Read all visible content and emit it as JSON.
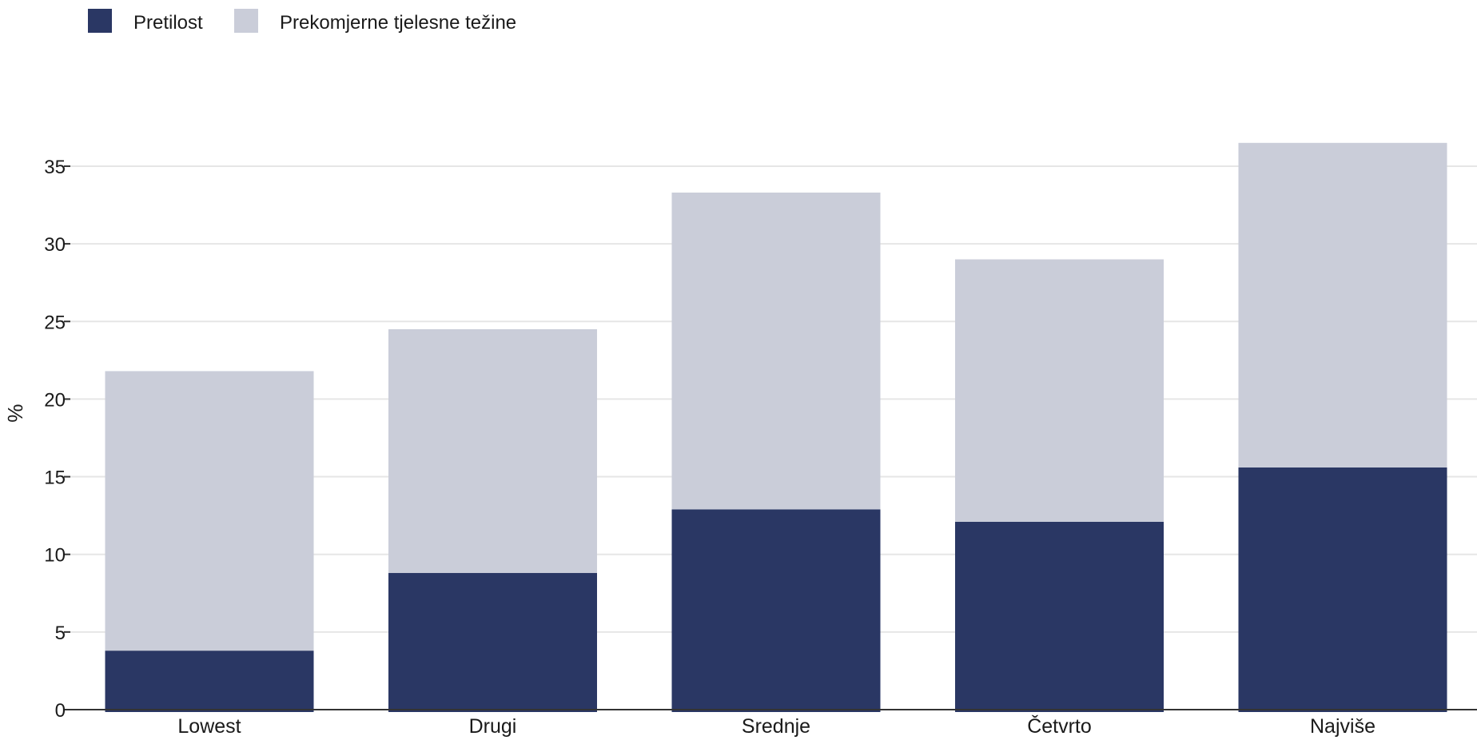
{
  "chart_data": {
    "type": "bar",
    "stacked": true,
    "categories": [
      "Lowest",
      "Drugi",
      "Srednje",
      "Četvrto",
      "Najviše"
    ],
    "series": [
      {
        "name": "Pretilost",
        "color": "#2a3764",
        "values": [
          3.8,
          8.8,
          12.9,
          12.1,
          15.6
        ]
      },
      {
        "name": "Prekomjerne tjelesne težine",
        "color": "#cacdd9",
        "values": [
          18.0,
          15.7,
          20.4,
          16.9,
          20.9
        ]
      }
    ],
    "ylabel": "%",
    "ylim": [
      0,
      40
    ],
    "yticks": [
      0,
      5,
      10,
      15,
      20,
      25,
      30,
      35
    ],
    "grid": true,
    "legend": "top-left"
  }
}
